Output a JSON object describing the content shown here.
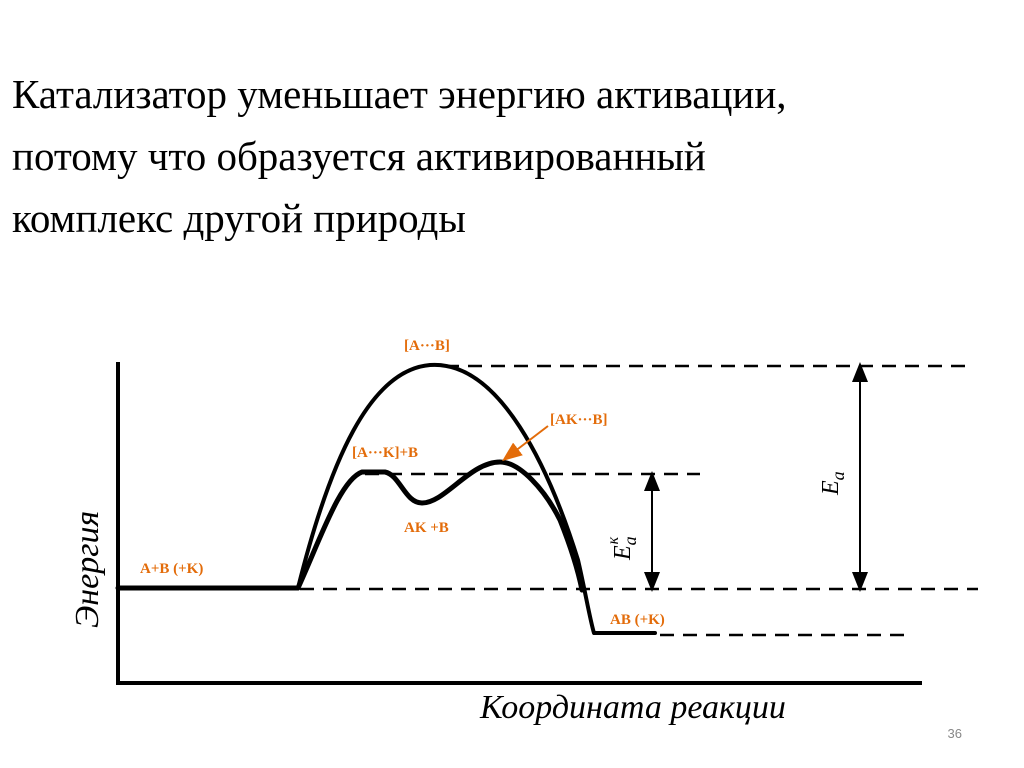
{
  "slide": {
    "title_lines": [
      "Катализатор уменьшает энергию активации,",
      "потому что образуется  активированный",
      "комплекс другой природы"
    ],
    "labels": {
      "uncatalyzed_complex": "[A···B]",
      "catalyzed_complex": "[AK···B]",
      "first_complex": "[A···K]+B",
      "intermediate": "AK +B",
      "reactants": "A+B (+K)",
      "products": "AB (+K)"
    },
    "activation_energy": {
      "symbol": "E",
      "subscript": "a"
    },
    "catalyzed_activation_energy": {
      "symbol": "E",
      "subscript": "a",
      "superscript": "к"
    },
    "y_axis_label": "Энергия",
    "x_axis_label": "Координата реакции",
    "page_number": "36"
  }
}
